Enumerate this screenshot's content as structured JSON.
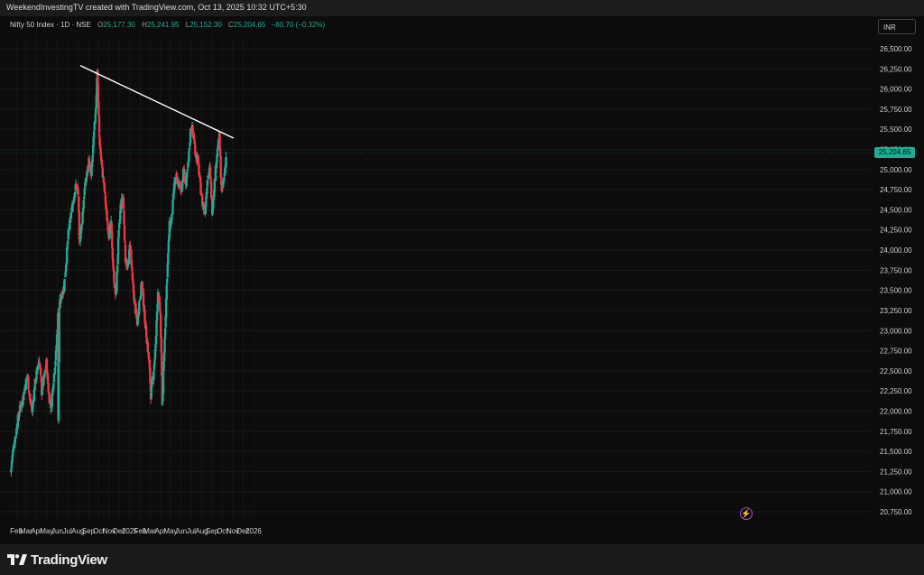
{
  "header": {
    "caption": "WeekendInvestingTV created with TradingView.com, Oct 13, 2025 10:32 UTC+5:30"
  },
  "legend": {
    "symbol": "Nifty 50 Index · 1D · NSE",
    "o_label": "O",
    "o_value": "25,177.30",
    "h_label": "H",
    "h_value": "25,241.95",
    "l_label": "L",
    "l_value": "25,152.30",
    "c_label": "C",
    "c_value": "25,204.65",
    "change": "−80.70 (−0.32%)"
  },
  "currency_button": "INR",
  "last_price_tag": "25,204.65",
  "price_axis": [
    "26,500.00",
    "26,250.00",
    "26,000.00",
    "25,750.00",
    "25,500.00",
    "25,250.00",
    "25,000.00",
    "24,750.00",
    "24,500.00",
    "24,250.00",
    "24,000.00",
    "23,750.00",
    "23,500.00",
    "23,250.00",
    "23,000.00",
    "22,750.00",
    "22,500.00",
    "22,250.00",
    "22,000.00",
    "21,750.00",
    "21,500.00",
    "21,250.00",
    "21,000.00",
    "20,750.00"
  ],
  "time_axis": [
    "Feb",
    "Mar",
    "Apr",
    "May",
    "Jun",
    "Jul",
    "Aug",
    "Sep",
    "Oct",
    "Nov",
    "Dec",
    "2025",
    "Feb",
    "Mar",
    "Apr",
    "May",
    "Jun",
    "Jul",
    "Aug",
    "Sep",
    "Oct",
    "Nov",
    "Dec",
    "2026"
  ],
  "footer": {
    "brand": "TradingView"
  },
  "colors": {
    "up": "#22ab94",
    "down": "#f23645",
    "trendline": "#ffffff",
    "background": "#0c0c0c"
  },
  "chart_data": {
    "type": "candlestick",
    "instrument": "Nifty 50 Index",
    "interval": "1D",
    "exchange": "NSE",
    "ylim": [
      20700,
      26650
    ],
    "last_close": 25204.65,
    "trendline": {
      "from": {
        "date": "2024-09-25",
        "price": 26280
      },
      "to": {
        "date": "2025-10-13",
        "price": 25390
      }
    },
    "path": [
      [
        "2024-01-16",
        21250
      ],
      [
        "2024-01-23",
        21550
      ],
      [
        "2024-01-30",
        21700
      ],
      [
        "2024-02-06",
        21900
      ],
      [
        "2024-02-13",
        22050
      ],
      [
        "2024-02-20",
        22150
      ],
      [
        "2024-02-27",
        22300
      ],
      [
        "2024-03-05",
        22450
      ],
      [
        "2024-03-12",
        22150
      ],
      [
        "2024-03-19",
        22000
      ],
      [
        "2024-03-26",
        22300
      ],
      [
        "2024-04-02",
        22500
      ],
      [
        "2024-04-09",
        22650
      ],
      [
        "2024-04-16",
        22250
      ],
      [
        "2024-04-23",
        22400
      ],
      [
        "2024-04-30",
        22600
      ],
      [
        "2024-05-07",
        22200
      ],
      [
        "2024-05-14",
        22050
      ],
      [
        "2024-05-21",
        22400
      ],
      [
        "2024-05-28",
        22700
      ],
      [
        "2024-06-03",
        23200
      ],
      [
        "2024-06-04",
        21900
      ],
      [
        "2024-06-07",
        23300
      ],
      [
        "2024-06-14",
        23450
      ],
      [
        "2024-06-21",
        23550
      ],
      [
        "2024-06-28",
        23900
      ],
      [
        "2024-07-05",
        24250
      ],
      [
        "2024-07-12",
        24450
      ],
      [
        "2024-07-19",
        24650
      ],
      [
        "2024-07-26",
        24800
      ],
      [
        "2024-08-02",
        24700
      ],
      [
        "2024-08-05",
        24100
      ],
      [
        "2024-08-12",
        24300
      ],
      [
        "2024-08-19",
        24700
      ],
      [
        "2024-08-26",
        24900
      ],
      [
        "2024-09-02",
        25100
      ],
      [
        "2024-09-09",
        24900
      ],
      [
        "2024-09-16",
        25350
      ],
      [
        "2024-09-23",
        25800
      ],
      [
        "2024-09-27",
        26250
      ],
      [
        "2024-10-03",
        25400
      ],
      [
        "2024-10-10",
        25050
      ],
      [
        "2024-10-17",
        24800
      ],
      [
        "2024-10-24",
        24450
      ],
      [
        "2024-10-31",
        24200
      ],
      [
        "2024-11-07",
        24300
      ],
      [
        "2024-11-14",
        23700
      ],
      [
        "2024-11-21",
        23400
      ],
      [
        "2024-11-28",
        24100
      ],
      [
        "2024-12-05",
        24550
      ],
      [
        "2024-12-12",
        24650
      ],
      [
        "2024-12-19",
        23900
      ],
      [
        "2024-12-26",
        23750
      ],
      [
        "2025-01-02",
        24100
      ],
      [
        "2025-01-09",
        23600
      ],
      [
        "2025-01-16",
        23300
      ],
      [
        "2025-01-23",
        23100
      ],
      [
        "2025-01-30",
        23400
      ],
      [
        "2025-02-06",
        23600
      ],
      [
        "2025-02-13",
        23200
      ],
      [
        "2025-02-20",
        22900
      ],
      [
        "2025-02-27",
        22600
      ],
      [
        "2025-03-04",
        22200
      ],
      [
        "2025-03-11",
        22450
      ],
      [
        "2025-03-18",
        22800
      ],
      [
        "2025-03-25",
        23500
      ],
      [
        "2025-04-01",
        23200
      ],
      [
        "2025-04-07",
        22100
      ],
      [
        "2025-04-14",
        22900
      ],
      [
        "2025-04-21",
        23700
      ],
      [
        "2025-04-28",
        24300
      ],
      [
        "2025-05-05",
        24400
      ],
      [
        "2025-05-12",
        24800
      ],
      [
        "2025-05-19",
        24900
      ],
      [
        "2025-05-26",
        24800
      ],
      [
        "2025-06-02",
        24750
      ],
      [
        "2025-06-09",
        25000
      ],
      [
        "2025-06-16",
        24800
      ],
      [
        "2025-06-23",
        25100
      ],
      [
        "2025-06-30",
        25550
      ],
      [
        "2025-07-07",
        25450
      ],
      [
        "2025-07-14",
        25200
      ],
      [
        "2025-07-21",
        25100
      ],
      [
        "2025-07-28",
        24800
      ],
      [
        "2025-08-04",
        24550
      ],
      [
        "2025-08-11",
        24500
      ],
      [
        "2025-08-18",
        24900
      ],
      [
        "2025-08-25",
        25000
      ],
      [
        "2025-09-01",
        24500
      ],
      [
        "2025-09-08",
        24850
      ],
      [
        "2025-09-15",
        25200
      ],
      [
        "2025-09-22",
        25400
      ],
      [
        "2025-09-29",
        24700
      ],
      [
        "2025-10-06",
        24900
      ],
      [
        "2025-10-13",
        25205
      ]
    ]
  }
}
